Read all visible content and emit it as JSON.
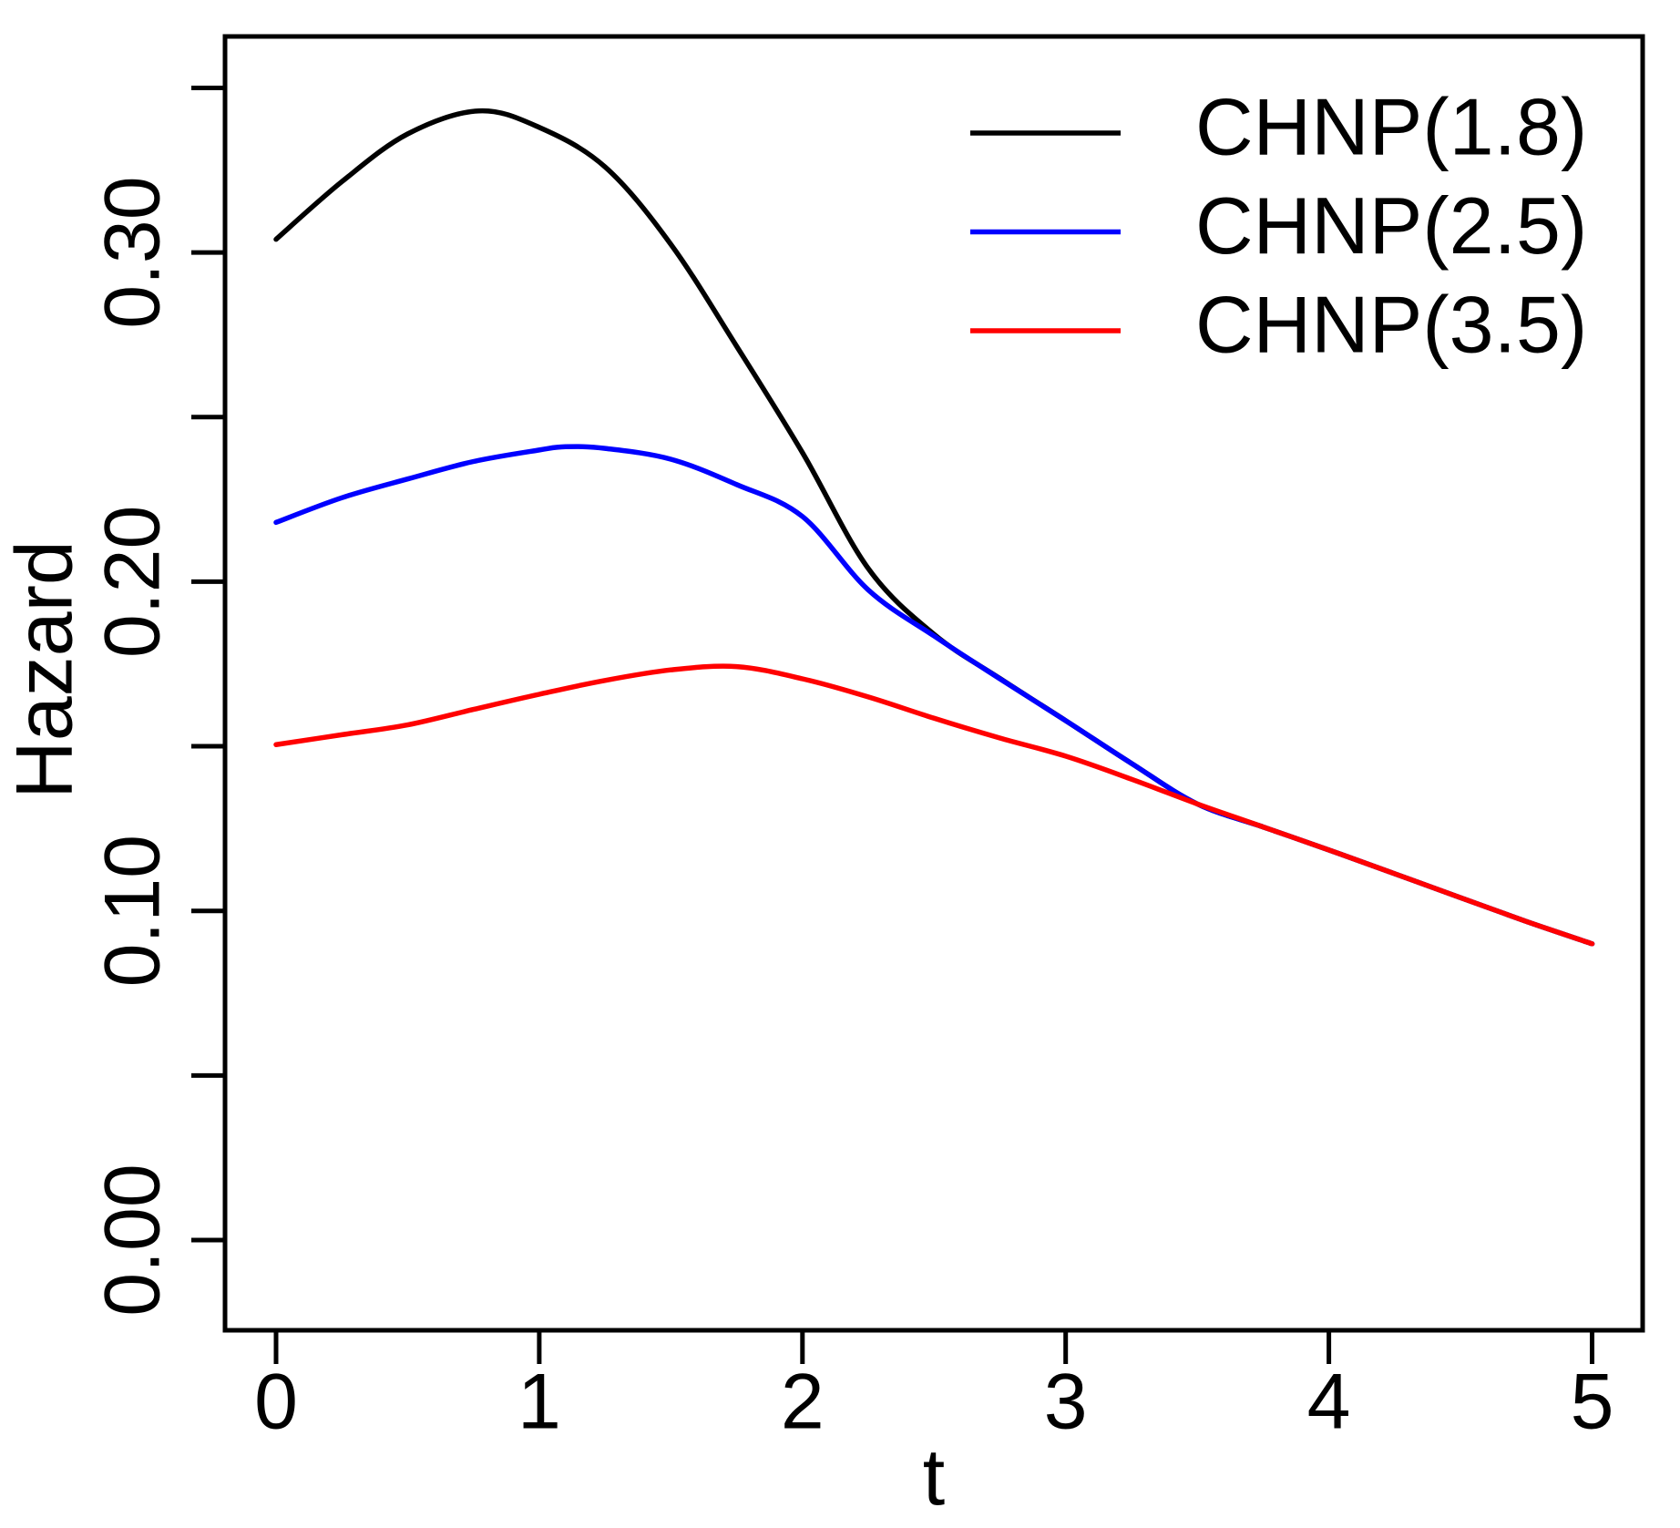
{
  "figure": {
    "background_color": "#ffffff",
    "frame_color": "#000000",
    "x_axis_title": "t",
    "y_axis_title": "Hazard"
  },
  "chart_data": {
    "type": "line",
    "title": "",
    "xlabel": "t",
    "ylabel": "Hazard",
    "xlim": [
      -0.2,
      5.2
    ],
    "ylim": [
      -0.027,
      0.366
    ],
    "grid": "off",
    "legend_position": "top-right",
    "x_ticks": [
      {
        "value": 0,
        "label": "0"
      },
      {
        "value": 1,
        "label": "1"
      },
      {
        "value": 2,
        "label": "2"
      },
      {
        "value": 3,
        "label": "3"
      },
      {
        "value": 4,
        "label": "4"
      },
      {
        "value": 5,
        "label": "5"
      }
    ],
    "y_ticks": [
      {
        "value": 0.0,
        "label": "0.00"
      },
      {
        "value": 0.05,
        "label": ""
      },
      {
        "value": 0.1,
        "label": "0.10"
      },
      {
        "value": 0.15,
        "label": ""
      },
      {
        "value": 0.2,
        "label": "0.20"
      },
      {
        "value": 0.25,
        "label": ""
      },
      {
        "value": 0.3,
        "label": "0.30"
      },
      {
        "value": 0.35,
        "label": ""
      }
    ],
    "series": [
      {
        "name": "CHNP(1.8)",
        "color": "#000000",
        "points": [
          [
            0.0,
            0.304
          ],
          [
            0.25,
            0.3215
          ],
          [
            0.5,
            0.336
          ],
          [
            0.77,
            0.343
          ],
          [
            1.0,
            0.338
          ],
          [
            1.25,
            0.326
          ],
          [
            1.5,
            0.3025
          ],
          [
            1.75,
            0.2715
          ],
          [
            2.0,
            0.2392
          ],
          [
            2.25,
            0.204
          ],
          [
            2.5,
            0.184
          ],
          [
            2.75,
            0.1706
          ],
          [
            3.0,
            0.1578
          ],
          [
            3.25,
            0.1448
          ],
          [
            3.5,
            0.1325
          ],
          [
            3.75,
            0.1255
          ],
          [
            4.0,
            0.1185
          ],
          [
            4.25,
            0.1113
          ],
          [
            4.5,
            0.104
          ],
          [
            4.75,
            0.0968
          ],
          [
            5.0,
            0.09
          ]
        ]
      },
      {
        "name": "CHNP(2.5)",
        "color": "#0000ff",
        "points": [
          [
            0.0,
            0.218
          ],
          [
            0.25,
            0.2255
          ],
          [
            0.5,
            0.2312
          ],
          [
            0.75,
            0.2365
          ],
          [
            1.0,
            0.24
          ],
          [
            1.1,
            0.241
          ],
          [
            1.25,
            0.2405
          ],
          [
            1.5,
            0.2372
          ],
          [
            1.75,
            0.2295
          ],
          [
            2.0,
            0.2198
          ],
          [
            2.25,
            0.1975
          ],
          [
            2.5,
            0.1835
          ],
          [
            2.75,
            0.1705
          ],
          [
            3.0,
            0.1578
          ],
          [
            3.25,
            0.1448
          ],
          [
            3.5,
            0.1325
          ],
          [
            3.75,
            0.1255
          ],
          [
            4.0,
            0.1185
          ],
          [
            4.25,
            0.1113
          ],
          [
            4.5,
            0.104
          ],
          [
            4.75,
            0.0968
          ],
          [
            5.0,
            0.09
          ]
        ]
      },
      {
        "name": "CHNP(3.5)",
        "color": "#ff0000",
        "points": [
          [
            0.0,
            0.1505
          ],
          [
            0.25,
            0.1535
          ],
          [
            0.5,
            0.1565
          ],
          [
            0.75,
            0.1612
          ],
          [
            1.0,
            0.1658
          ],
          [
            1.25,
            0.17
          ],
          [
            1.5,
            0.1732
          ],
          [
            1.75,
            0.1742
          ],
          [
            2.0,
            0.1705
          ],
          [
            2.25,
            0.165
          ],
          [
            2.5,
            0.1585
          ],
          [
            2.75,
            0.1525
          ],
          [
            3.0,
            0.147
          ],
          [
            3.25,
            0.14
          ],
          [
            3.5,
            0.1325
          ],
          [
            3.75,
            0.1255
          ],
          [
            4.0,
            0.1185
          ],
          [
            4.25,
            0.1113
          ],
          [
            4.5,
            0.104
          ],
          [
            4.75,
            0.0968
          ],
          [
            5.0,
            0.09
          ]
        ]
      }
    ]
  }
}
